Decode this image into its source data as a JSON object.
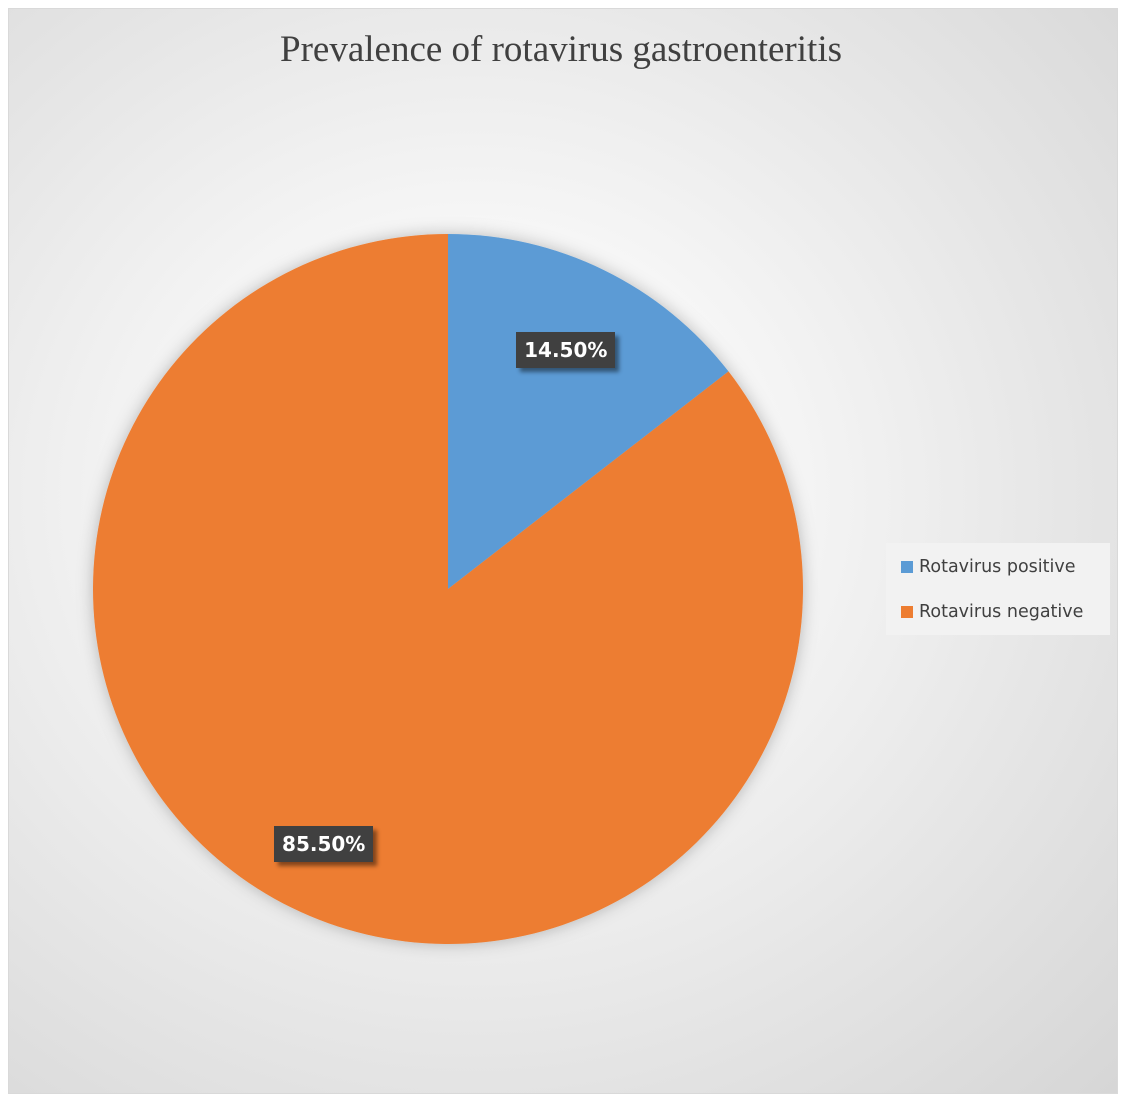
{
  "chart_data": {
    "type": "pie",
    "title": "Prevalence of rotavirus gastroenteritis",
    "slices": [
      {
        "name": "Rotavirus positive",
        "value": 14.5,
        "label": "14.50%",
        "color": "#5b9bd5"
      },
      {
        "name": "Rotavirus negative",
        "value": 85.5,
        "label": "85.50%",
        "color": "#ed7d31"
      }
    ],
    "start_angle_deg": 0,
    "direction": "clockwise",
    "legend_position": "right"
  }
}
